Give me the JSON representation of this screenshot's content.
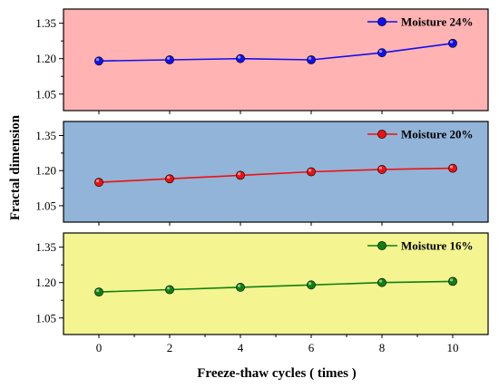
{
  "chart_data": {
    "type": "line",
    "xlabel": "Freeze-thaw cycles ( times )",
    "ylabel": "Fractal dimension",
    "x": [
      0,
      2,
      4,
      6,
      8,
      10
    ],
    "xlim": [
      -1,
      11
    ],
    "x_ticks": [
      "0",
      "2",
      "4",
      "6",
      "8",
      "10"
    ],
    "panels": [
      {
        "background": "#ffb3b3",
        "ylim": [
          0.98,
          1.41
        ],
        "y_ticks": [
          "1.05",
          "1.20",
          "1.35"
        ],
        "series": [
          {
            "name": "Moisture 24%",
            "color": "#1010ee",
            "values": [
              1.19,
              1.195,
              1.2,
              1.195,
              1.225,
              1.265
            ]
          }
        ],
        "legend_position": "top-right"
      },
      {
        "background": "#92b4d8",
        "ylim": [
          0.98,
          1.41
        ],
        "y_ticks": [
          "1.05",
          "1.20",
          "1.35"
        ],
        "series": [
          {
            "name": "Moisture 20%",
            "color": "#ee1010",
            "values": [
              1.15,
              1.165,
              1.18,
              1.195,
              1.205,
              1.21
            ]
          }
        ],
        "legend_position": "top-right"
      },
      {
        "background": "#f4f491",
        "ylim": [
          0.98,
          1.41
        ],
        "y_ticks": [
          "1.05",
          "1.20",
          "1.35"
        ],
        "series": [
          {
            "name": "Moisture 16%",
            "color": "#0f800f",
            "values": [
              1.16,
              1.17,
              1.18,
              1.19,
              1.2,
              1.205
            ]
          }
        ],
        "legend_position": "top-right"
      }
    ]
  }
}
